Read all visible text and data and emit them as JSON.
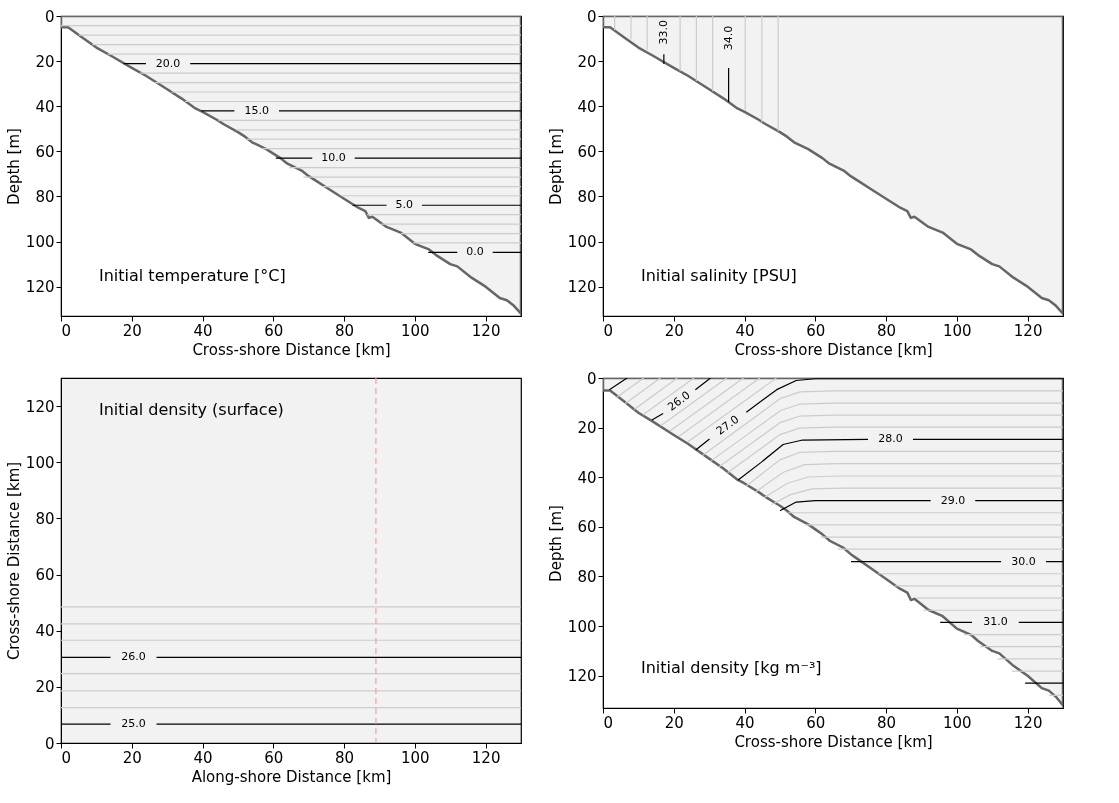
{
  "chart_data": [
    {
      "type": "line",
      "title": "Initial temperature [°C]",
      "xlabel": "Cross-shore Distance [km]",
      "ylabel": "Depth [m]",
      "xlim": [
        0,
        130
      ],
      "ylim": [
        133,
        0
      ],
      "xticks": [
        0,
        20,
        40,
        60,
        80,
        100,
        120
      ],
      "yticks": [
        0,
        20,
        40,
        60,
        80,
        100,
        120
      ],
      "series": [
        {
          "color": "#cccccc",
          "x": [
            0,
            130
          ],
          "values": [
            4.3,
            4.3
          ]
        },
        {
          "color": "#cccccc",
          "x": [
            5,
            130
          ],
          "values": [
            8.5,
            8.5
          ]
        },
        {
          "color": "#cccccc",
          "x": [
            8.8,
            130
          ],
          "values": [
            12.7,
            12.7
          ]
        },
        {
          "color": "#cccccc",
          "x": [
            13.2,
            130
          ],
          "values": [
            16.9,
            16.9
          ]
        },
        {
          "color": "#cccccc",
          "x": [
            22.3,
            130
          ],
          "values": [
            25.3,
            25.3
          ]
        },
        {
          "color": "#cccccc",
          "x": [
            26.5,
            130
          ],
          "values": [
            29.5,
            29.5
          ]
        },
        {
          "color": "#cccccc",
          "x": [
            31.2,
            130
          ],
          "values": [
            33.7,
            33.7
          ]
        },
        {
          "color": "#cccccc",
          "x": [
            35,
            130
          ],
          "values": [
            37.9,
            37.9
          ]
        },
        {
          "color": "#cccccc",
          "x": [
            44.5,
            130
          ],
          "values": [
            46.3,
            46.3
          ]
        },
        {
          "color": "#cccccc",
          "x": [
            49.5,
            130
          ],
          "values": [
            50.5,
            50.5
          ]
        },
        {
          "color": "#cccccc",
          "x": [
            52.5,
            130
          ],
          "values": [
            54.6,
            54.6
          ]
        },
        {
          "color": "#cccccc",
          "x": [
            57,
            130
          ],
          "values": [
            58.8,
            58.8
          ]
        },
        {
          "color": "#cccccc",
          "x": [
            64.5,
            130
          ],
          "values": [
            67.2,
            67.2
          ]
        },
        {
          "color": "#cccccc",
          "x": [
            68.5,
            130
          ],
          "values": [
            71.4,
            71.4
          ]
        },
        {
          "color": "#cccccc",
          "x": [
            74,
            130
          ],
          "values": [
            75.6,
            75.6
          ]
        },
        {
          "color": "#cccccc",
          "x": [
            79,
            130
          ],
          "values": [
            79.7,
            79.7
          ]
        },
        {
          "color": "#cccccc",
          "x": [
            86.5,
            130
          ],
          "values": [
            88.1,
            88.1
          ]
        },
        {
          "color": "#cccccc",
          "x": [
            90.5,
            130
          ],
          "values": [
            92.3,
            92.3
          ]
        },
        {
          "color": "#cccccc",
          "x": [
            96,
            130
          ],
          "values": [
            96.5,
            96.5
          ]
        },
        {
          "color": "#cccccc",
          "x": [
            99.5,
            130
          ],
          "values": [
            100.6,
            100.6
          ]
        },
        {
          "color": "#000000",
          "x": [
            17.7,
            24,
            null,
            36.5,
            130
          ],
          "values": [
            21.1,
            21.1,
            null,
            21.1,
            21.1
          ]
        },
        {
          "color": "#000000",
          "x": [
            39.6,
            49,
            null,
            61.6,
            130
          ],
          "values": [
            42.1,
            42.1,
            null,
            42.1,
            42.1
          ]
        },
        {
          "color": "#000000",
          "x": [
            60.7,
            71,
            null,
            83,
            130
          ],
          "values": [
            63,
            63,
            null,
            63,
            63
          ]
        },
        {
          "color": "#000000",
          "x": [
            82.4,
            92,
            null,
            102,
            130
          ],
          "values": [
            83.9,
            83.9,
            null,
            83.9,
            83.9
          ]
        },
        {
          "color": "#000000",
          "x": [
            103.8,
            112,
            null,
            122,
            130
          ],
          "values": [
            104.8,
            104.8,
            null,
            104.8,
            104.8
          ]
        },
        {
          "type": "area",
          "color": "#f2f2f2",
          "x": [
            0,
            2,
            6,
            10,
            14,
            20,
            24,
            26,
            30,
            34,
            38,
            40,
            44,
            46,
            50,
            52,
            54,
            58,
            60,
            62,
            64,
            66,
            68,
            70,
            72,
            76,
            80,
            84,
            86,
            87,
            88,
            92,
            96,
            100,
            104,
            106,
            110,
            112,
            116,
            120,
            124,
            126,
            128,
            130
          ],
          "values": [
            5,
            5,
            9.5,
            14,
            17.5,
            23,
            26.5,
            28.5,
            32.5,
            36.5,
            41,
            42.5,
            46,
            48,
            51.5,
            53.5,
            56,
            59,
            61,
            63,
            65.5,
            67,
            68.5,
            71,
            73,
            77,
            81,
            85,
            86.5,
            89.5,
            89,
            93.5,
            96,
            101,
            103.5,
            106,
            110,
            111,
            116,
            120,
            125,
            126,
            128.5,
            132
          ]
        }
      ],
      "annotations": [
        "20.0",
        "15.0",
        "10.0",
        "5.0",
        "0.0"
      ]
    },
    {
      "type": "line",
      "title": "Initial salinity [PSU]",
      "xlabel": "Cross-shore Distance [km]",
      "ylabel": "Depth [m]",
      "xlim": [
        0,
        130
      ],
      "ylim": [
        133,
        0
      ],
      "xticks": [
        0,
        20,
        40,
        60,
        80,
        100,
        120
      ],
      "yticks": [
        0,
        20,
        40,
        60,
        80,
        100,
        120
      ],
      "series": [
        {
          "color": "#cccccc",
          "x": [
            3.3,
            3.3
          ],
          "values": [
            0,
            6.2
          ]
        },
        {
          "color": "#cccccc",
          "x": [
            7.9,
            7.9
          ],
          "values": [
            0,
            10.4
          ]
        },
        {
          "color": "#cccccc",
          "x": [
            12.5,
            12.5
          ],
          "values": [
            0,
            15.1
          ]
        },
        {
          "color": "#cccccc",
          "x": [
            21.8,
            21.8
          ],
          "values": [
            0,
            24.5
          ]
        },
        {
          "color": "#cccccc",
          "x": [
            26.4,
            26.4
          ],
          "values": [
            0,
            28.8
          ]
        },
        {
          "color": "#cccccc",
          "x": [
            31,
            31
          ],
          "values": [
            0,
            33.4
          ]
        },
        {
          "color": "#cccccc",
          "x": [
            40.2,
            40.2
          ],
          "values": [
            0,
            41.7
          ]
        },
        {
          "color": "#cccccc",
          "x": [
            44.9,
            44.9
          ],
          "values": [
            0,
            47.2
          ]
        },
        {
          "color": "#cccccc",
          "x": [
            49.5,
            49.5
          ],
          "values": [
            0,
            51.1
          ]
        },
        {
          "color": "#000000",
          "x": [
            null,
            17.2,
            17.2
          ],
          "values": [
            null,
            17,
            21.3
          ]
        },
        {
          "color": "#000000",
          "x": [
            null,
            35.5,
            35.5
          ],
          "values": [
            null,
            23,
            38.1
          ]
        },
        {
          "type": "area",
          "color": "#f2f2f2",
          "x": [
            0,
            2,
            6,
            10,
            14,
            20,
            24,
            26,
            30,
            34,
            38,
            40,
            44,
            46,
            50,
            52,
            54,
            58,
            60,
            62,
            64,
            66,
            68,
            70,
            72,
            76,
            80,
            84,
            86,
            87,
            88,
            92,
            96,
            100,
            104,
            106,
            110,
            112,
            116,
            120,
            124,
            126,
            128,
            130
          ],
          "values": [
            5,
            5,
            9.5,
            14,
            17.5,
            23,
            26.5,
            28.5,
            32.5,
            36.5,
            41,
            42.5,
            46,
            48,
            51.5,
            53.5,
            56,
            59,
            61,
            63,
            65.5,
            67,
            68.5,
            71,
            73,
            77,
            81,
            85,
            86.5,
            89.5,
            89,
            93.5,
            96,
            101,
            103.5,
            106,
            110,
            111,
            116,
            120,
            125,
            126,
            128.5,
            132
          ]
        }
      ],
      "annotations": [
        "33.0",
        "34.0"
      ]
    },
    {
      "type": "line",
      "title": "Initial density (surface)",
      "xlabel": "Along-shore Distance [km]",
      "ylabel": "Cross-shore Distance [km]",
      "xlim": [
        0,
        130
      ],
      "ylim": [
        0,
        130
      ],
      "xticks": [
        0,
        20,
        40,
        60,
        80,
        100,
        120
      ],
      "yticks": [
        0,
        20,
        40,
        60,
        80,
        100,
        120
      ],
      "series": [
        {
          "color": "#cccccc",
          "x": [
            0,
            130
          ],
          "values": [
            12.6,
            12.6
          ]
        },
        {
          "color": "#cccccc",
          "x": [
            0,
            130
          ],
          "values": [
            18.6,
            18.6
          ]
        },
        {
          "color": "#cccccc",
          "x": [
            0,
            130
          ],
          "values": [
            24.7,
            24.7
          ]
        },
        {
          "color": "#cccccc",
          "x": [
            0,
            130
          ],
          "values": [
            36.6,
            36.6
          ]
        },
        {
          "color": "#cccccc",
          "x": [
            0,
            130
          ],
          "values": [
            42.4,
            42.4
          ]
        },
        {
          "color": "#cccccc",
          "x": [
            0,
            130
          ],
          "values": [
            48.5,
            48.5
          ]
        },
        {
          "color": "#000000",
          "x": [
            0,
            14,
            null,
            27,
            130
          ],
          "values": [
            6.7,
            6.7,
            null,
            6.7,
            6.7
          ]
        },
        {
          "color": "#000000",
          "x": [
            0,
            14,
            null,
            27,
            130
          ],
          "values": [
            30.5,
            30.5,
            null,
            30.5,
            30.5
          ]
        }
      ],
      "ref_lines": [
        {
          "axis": "x",
          "value": 89,
          "color": "#f4a0a0",
          "line_style": "dashed"
        }
      ],
      "annotations": [
        "25.0",
        "26.0"
      ]
    },
    {
      "type": "line",
      "title": "Initial density [kg m⁻³]",
      "xlabel": "Cross-shore Distance [km]",
      "ylabel": "Depth [m]",
      "xlim": [
        0,
        130
      ],
      "ylim": [
        133,
        0
      ],
      "xticks": [
        0,
        20,
        40,
        60,
        80,
        100,
        120
      ],
      "yticks": [
        0,
        20,
        40,
        60,
        80,
        100,
        120
      ],
      "series": [
        {
          "color": "#cccccc",
          "x": [
            3.6,
            11.5
          ],
          "values": [
            8.1,
            0
          ]
        },
        {
          "color": "#cccccc",
          "x": [
            6.2,
            16.2
          ],
          "values": [
            10.4,
            0
          ]
        },
        {
          "color": "#cccccc",
          "x": [
            8.8,
            21
          ],
          "values": [
            12.7,
            0
          ]
        },
        {
          "color": "#cccccc",
          "x": [
            11.3,
            25.7
          ],
          "values": [
            14.8,
            0
          ]
        },
        {
          "color": "#cccccc",
          "x": [
            16.3,
            35
          ],
          "values": [
            19.2,
            0
          ]
        },
        {
          "color": "#cccccc",
          "x": [
            18.9,
            39.7
          ],
          "values": [
            21.4,
            0
          ]
        },
        {
          "color": "#cccccc",
          "x": [
            21.4,
            44.3
          ],
          "values": [
            23.6,
            0
          ]
        },
        {
          "color": "#cccccc",
          "x": [
            23.9,
            49
          ],
          "values": [
            25.8,
            0
          ]
        },
        {
          "color": "#cccccc",
          "x": [
            28.1,
            50.2,
            55.7,
            65,
            130
          ],
          "values": [
            31.2,
            8.2,
            5.6,
            5.2,
            5.2
          ]
        },
        {
          "color": "#cccccc",
          "x": [
            30.5,
            50.2,
            55.7,
            65,
            130
          ],
          "values": [
            33.4,
            13.1,
            10.5,
            10.1,
            10.1
          ]
        },
        {
          "color": "#cccccc",
          "x": [
            32.8,
            50,
            55.5,
            65,
            130
          ],
          "values": [
            35.8,
            18,
            15.4,
            15,
            15
          ]
        },
        {
          "color": "#cccccc",
          "x": [
            35.2,
            50,
            55.5,
            65,
            130
          ],
          "values": [
            38.2,
            22.8,
            20.2,
            19.8,
            19.8
          ]
        },
        {
          "color": "#cccccc",
          "x": [
            40.5,
            50,
            55.5,
            65,
            130
          ],
          "values": [
            43.5,
            33,
            30,
            29.6,
            29.6
          ]
        },
        {
          "color": "#cccccc",
          "x": [
            43,
            51,
            57,
            66,
            130
          ],
          "values": [
            46,
            38,
            34.9,
            34.5,
            34.5
          ]
        },
        {
          "color": "#cccccc",
          "x": [
            45.4,
            52,
            58,
            67,
            130
          ],
          "values": [
            48.4,
            42.5,
            39.9,
            39.5,
            39.5
          ]
        },
        {
          "color": "#cccccc",
          "x": [
            47.7,
            53,
            59,
            68,
            130
          ],
          "values": [
            51,
            47,
            44.7,
            44.4,
            44.4
          ]
        },
        {
          "color": "#cccccc",
          "x": [
            52.3,
            130
          ],
          "values": [
            54.3,
            54.3
          ]
        },
        {
          "color": "#cccccc",
          "x": [
            57.2,
            130
          ],
          "values": [
            59.2,
            59.2
          ]
        },
        {
          "color": "#cccccc",
          "x": [
            61.5,
            130
          ],
          "values": [
            64.1,
            64.1
          ]
        },
        {
          "color": "#cccccc",
          "x": [
            66.4,
            130
          ],
          "values": [
            69,
            69
          ]
        },
        {
          "color": "#cccccc",
          "x": [
            77.8,
            130
          ],
          "values": [
            78.9,
            78.9
          ]
        },
        {
          "color": "#cccccc",
          "x": [
            82.5,
            130
          ],
          "values": [
            83.8,
            83.8
          ]
        },
        {
          "color": "#cccccc",
          "x": [
            88.5,
            130
          ],
          "values": [
            88.7,
            88.7
          ]
        },
        {
          "color": "#cccccc",
          "x": [
            90.5,
            130
          ],
          "values": [
            93.6,
            93.6
          ]
        },
        {
          "color": "#cccccc",
          "x": [
            102,
            130
          ],
          "values": [
            103.4,
            103.4
          ]
        },
        {
          "color": "#cccccc",
          "x": [
            106.5,
            130
          ],
          "values": [
            108.3,
            108.3
          ]
        },
        {
          "color": "#cccccc",
          "x": [
            111.5,
            130
          ],
          "values": [
            113.2,
            113.2
          ]
        },
        {
          "color": "#cccccc",
          "x": [
            115.5,
            130
          ],
          "values": [
            118.1,
            118.1
          ]
        },
        {
          "color": "#cccccc",
          "x": [
            126,
            130
          ],
          "values": [
            127.9,
            127.9
          ]
        },
        {
          "color": "#000000",
          "x": [
            1.8,
            6.8
          ],
          "values": [
            4.7,
            0
          ]
        },
        {
          "color": "#000000",
          "x": [
            13.8,
            17,
            null,
            26.1,
            30.4
          ],
          "values": [
            16.9,
            14.3,
            null,
            4.7,
            0
          ]
        },
        {
          "color": "#000000",
          "x": [
            26.2,
            30.1,
            null,
            40.5,
            49.1,
            54.6,
            60,
            130
          ],
          "values": [
            29,
            24.6,
            null,
            13.8,
            4.7,
            1,
            0.3,
            0.3
          ]
        },
        {
          "color": "#000000",
          "x": [
            38.1,
            44.6,
            50.9,
            56.4,
            74.9,
            null,
            87.6,
            130
          ],
          "values": [
            41.2,
            34.1,
            26.8,
            25,
            24.7,
            null,
            24.7,
            24.7
          ]
        },
        {
          "color": "#000000",
          "x": [
            50,
            54.6,
            60,
            92.6,
            null,
            105.2,
            130
          ],
          "values": [
            53.5,
            50,
            49.4,
            49.4,
            null,
            49.4,
            49.4
          ]
        },
        {
          "color": "#000000",
          "x": [
            70.1,
            112.5,
            null,
            125.2,
            130
          ],
          "values": [
            74,
            74,
            null,
            74,
            74
          ]
        },
        {
          "color": "#000000",
          "x": [
            95.3,
            104.3,
            null,
            117.5,
            130
          ],
          "values": [
            98.5,
            98.5,
            null,
            98.5,
            98.5
          ]
        },
        {
          "color": "#000000",
          "x": [
            119.3,
            130
          ],
          "values": [
            123,
            123
          ]
        },
        {
          "type": "area",
          "color": "#f2f2f2",
          "x": [
            0,
            2,
            6,
            10,
            14,
            20,
            24,
            26,
            30,
            34,
            38,
            40,
            44,
            46,
            50,
            52,
            54,
            58,
            60,
            62,
            64,
            66,
            68,
            70,
            72,
            76,
            80,
            84,
            86,
            87,
            88,
            92,
            96,
            100,
            104,
            106,
            110,
            112,
            116,
            120,
            124,
            126,
            128,
            130
          ],
          "values": [
            5,
            5,
            9.5,
            14,
            17.5,
            23,
            26.5,
            28.5,
            32.5,
            36.5,
            41,
            42.5,
            46,
            48,
            51.5,
            53.5,
            56,
            59,
            61,
            63,
            65.5,
            67,
            68.5,
            71,
            73,
            77,
            81,
            85,
            86.5,
            89.5,
            89,
            93.5,
            96,
            101,
            103.5,
            106,
            110,
            111,
            116,
            120,
            125,
            126,
            128.5,
            132
          ]
        }
      ],
      "annotations": [
        "26.0",
        "27.0",
        "28.0",
        "29.0",
        "30.0",
        "31.0"
      ]
    }
  ]
}
